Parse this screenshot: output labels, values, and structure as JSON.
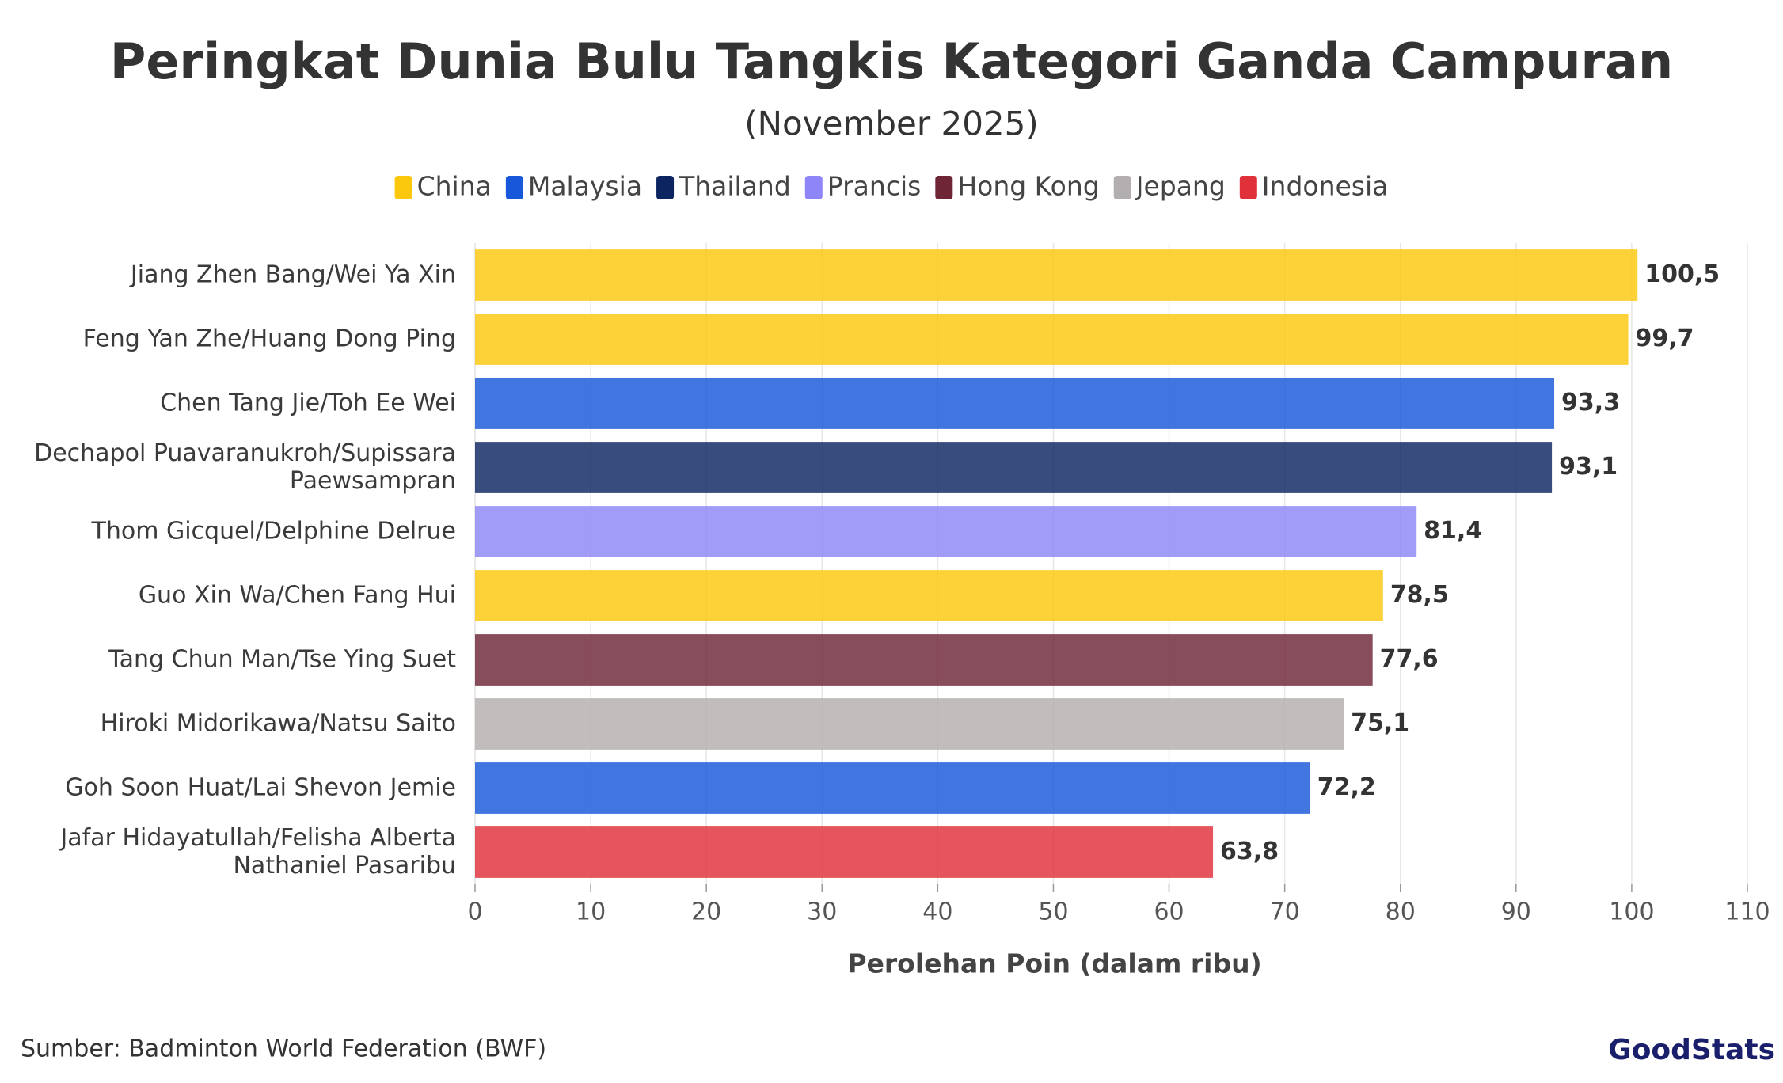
{
  "chart_data": {
    "type": "bar",
    "orientation": "horizontal",
    "title": "Peringkat Dunia Bulu Tangkis Kategori Ganda Campuran",
    "subtitle": "(November 2025)",
    "x_label": "Perolehan Poin (dalam ribu)",
    "source": "Sumber: Badminton World Federation (BWF)",
    "logo": "GoodStats",
    "legend": [
      {
        "name": "China",
        "color": "#fcc80e"
      },
      {
        "name": "Malaysia",
        "color": "#1758db"
      },
      {
        "name": "Thailand",
        "color": "#0c2460"
      },
      {
        "name": "Prancis",
        "color": "#8e86f8"
      },
      {
        "name": "Hong Kong",
        "color": "#6e2637"
      },
      {
        "name": "Jepang",
        "color": "#b3aeaf"
      },
      {
        "name": "Indonesia",
        "color": "#e0303a"
      }
    ],
    "categories": [
      "Jiang Zhen Bang/Wei Ya Xin",
      "Feng Yan Zhe/Huang Dong Ping",
      "Chen Tang Jie/Toh Ee Wei",
      "Dechapol Puavaranukroh/Supissara Paewsampran",
      "Thom Gicquel/Delphine Delrue",
      "Guo Xin Wa/Chen Fang Hui",
      "Tang Chun Man/Tse Ying Suet",
      "Hiroki Midorikawa/Natsu Saito",
      "Goh Soon Huat/Lai Shevon Jemie",
      "Jafar Hidayatullah/Felisha Alberta Nathaniel Pasaribu"
    ],
    "values": [
      100.5,
      99.7,
      93.3,
      93.1,
      81.4,
      78.5,
      77.6,
      75.1,
      72.2,
      63.8
    ],
    "value_labels": [
      "100,5",
      "99,7",
      "93,3",
      "93,1",
      "81,4",
      "78,5",
      "77,6",
      "75,1",
      "72,2",
      "63,8"
    ],
    "colors": [
      "#fcc80e",
      "#fcc80e",
      "#1758db",
      "#0c2460",
      "#8e86f8",
      "#fcc80e",
      "#6e2637",
      "#b3aeaf",
      "#1758db",
      "#e0303a"
    ],
    "xlim": [
      0,
      110
    ],
    "xticks": [
      0,
      10,
      20,
      30,
      40,
      50,
      60,
      70,
      80,
      90,
      100,
      110
    ],
    "grid": true
  }
}
